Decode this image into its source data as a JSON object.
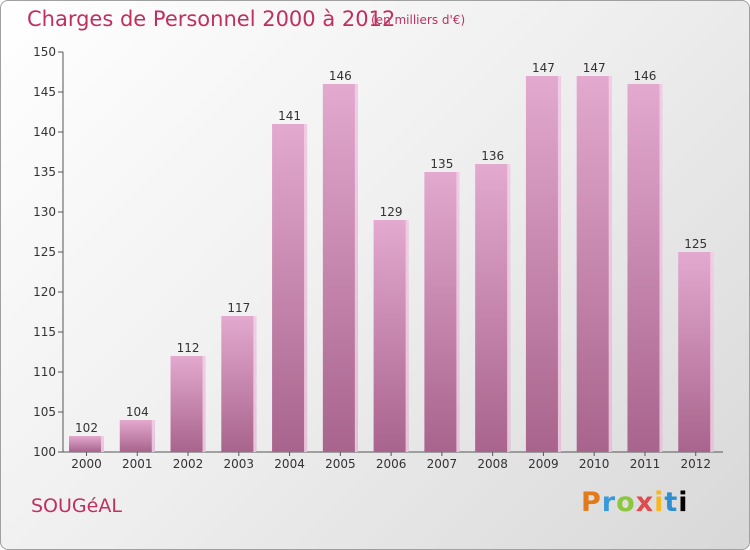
{
  "header": {
    "title": "Charges de Personnel 2000 à 2012",
    "unit": "(en milliers d'€)"
  },
  "footer": {
    "commune": "SOUGéAL",
    "logo": "Proxiti"
  },
  "colors": {
    "title": "#c0305e",
    "bar_top": "#e3a9cf",
    "bar_bottom": "#a8648c",
    "bar_side": "#f2d3e6"
  },
  "chart_data": {
    "type": "bar",
    "title": "Charges de Personnel 2000 à 2012",
    "subtitle": "(en milliers d'€)",
    "categories": [
      "2000",
      "2001",
      "2002",
      "2003",
      "2004",
      "2005",
      "2006",
      "2007",
      "2008",
      "2009",
      "2010",
      "2011",
      "2012"
    ],
    "values": [
      102,
      104,
      112,
      117,
      141,
      146,
      129,
      135,
      136,
      147,
      147,
      146,
      125
    ],
    "ylim": [
      100,
      150
    ],
    "yticks": [
      100,
      105,
      110,
      115,
      120,
      125,
      130,
      135,
      140,
      145,
      150
    ],
    "grid": false,
    "xlabel": "",
    "ylabel": ""
  }
}
